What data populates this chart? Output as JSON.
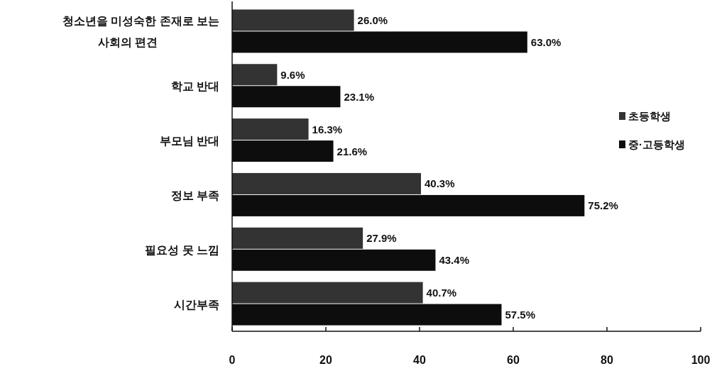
{
  "chart_data": {
    "type": "bar",
    "orientation": "horizontal",
    "categories": [
      "청소년을 미성숙한 존재로 보는\n사회의 편견",
      "학교 반대",
      "부모님 반대",
      "정보 부족",
      "필요성 못 느낌",
      "시간부족"
    ],
    "series": [
      {
        "name": "초등학생",
        "color": "#333333",
        "values": [
          26.0,
          9.6,
          16.3,
          40.3,
          27.9,
          40.7
        ],
        "value_labels": [
          "26.0%",
          "9.6%",
          "16.3%",
          "40.3%",
          "27.9%",
          "40.7%"
        ]
      },
      {
        "name": "중·고등학생",
        "color": "#0d0d0d",
        "values": [
          63.0,
          23.1,
          21.6,
          75.2,
          43.4,
          57.5
        ],
        "value_labels": [
          "63.0%",
          "23.1%",
          "21.6%",
          "75.2%",
          "43.4%",
          "57.5%"
        ]
      }
    ],
    "xlim": [
      0,
      100
    ],
    "xticks": [
      0,
      20,
      40,
      60,
      80,
      100
    ],
    "grid": false,
    "legend": "right"
  }
}
